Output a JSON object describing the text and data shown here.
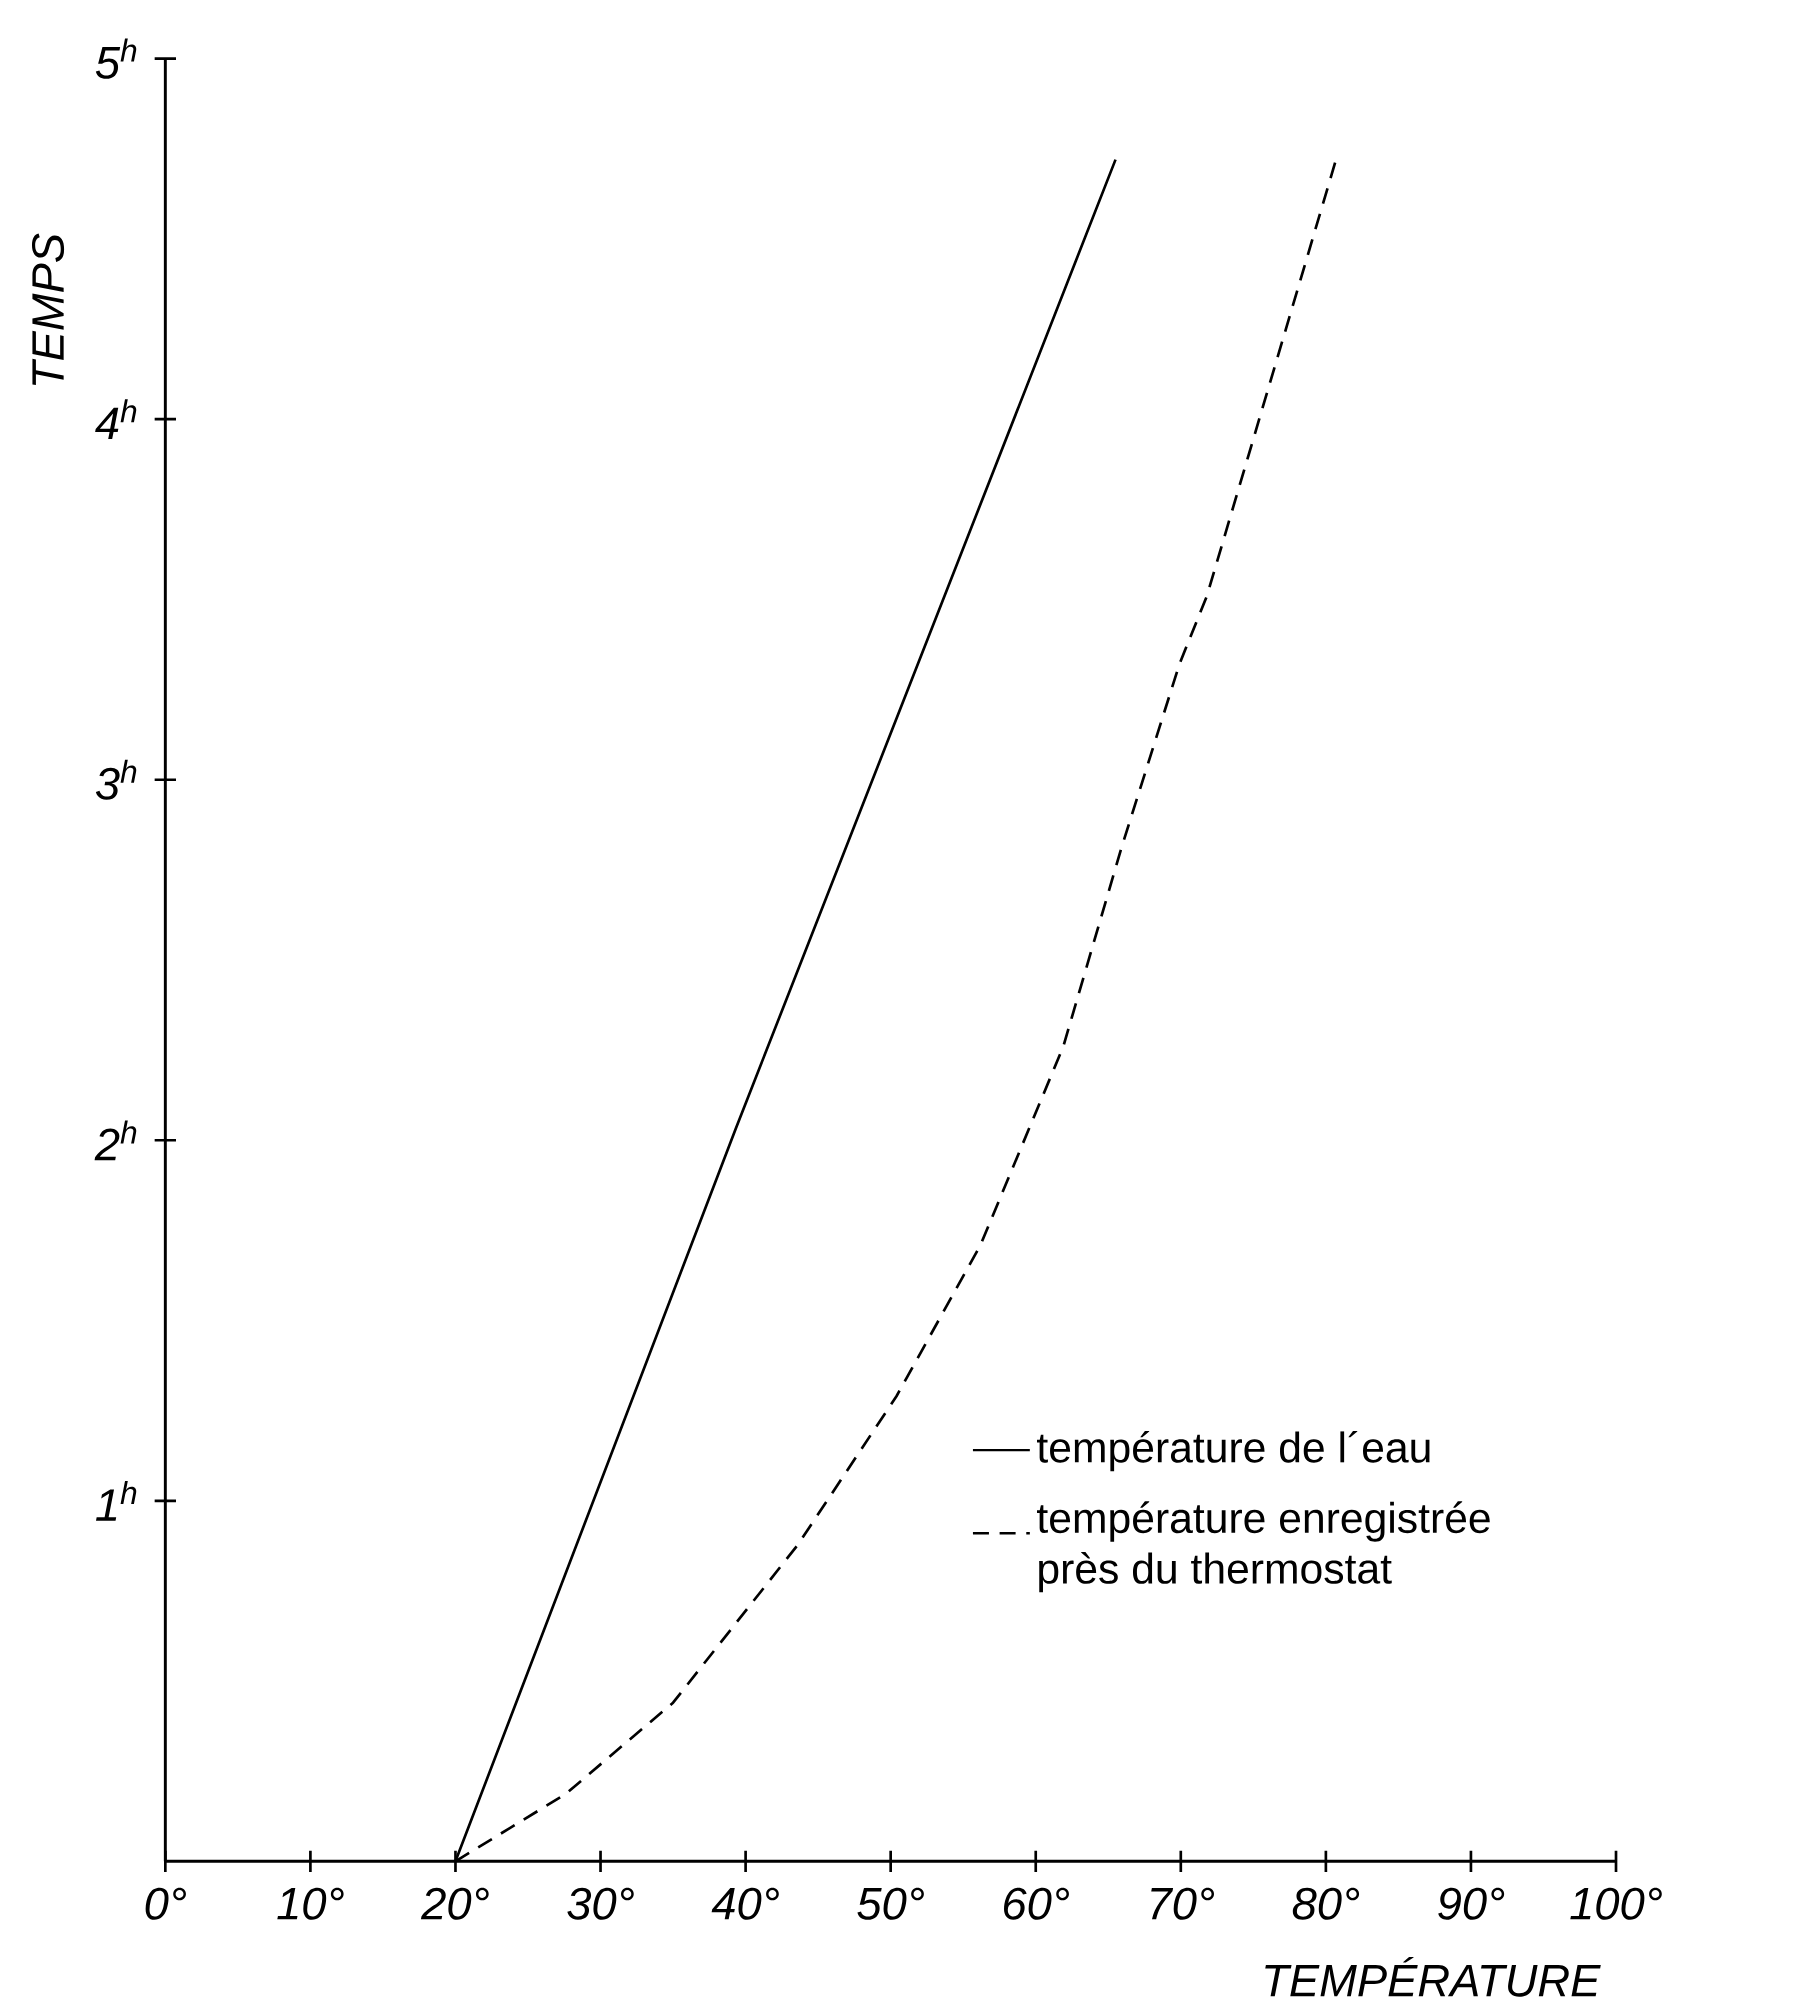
{
  "chart_data": {
    "type": "line",
    "xlabel": "TEMPÉRATURE",
    "ylabel": "TEMPS",
    "xlim": [
      0,
      100
    ],
    "ylim": [
      0,
      5
    ],
    "xticks": [
      {
        "value": 0,
        "label": "0°"
      },
      {
        "value": 10,
        "label": "10°"
      },
      {
        "value": 20,
        "label": "20°"
      },
      {
        "value": 30,
        "label": "30°"
      },
      {
        "value": 40,
        "label": "40°"
      },
      {
        "value": 50,
        "label": "50°"
      },
      {
        "value": 60,
        "label": "60°"
      },
      {
        "value": 70,
        "label": "70°"
      },
      {
        "value": 80,
        "label": "80°"
      },
      {
        "value": 90,
        "label": "90°"
      },
      {
        "value": 100,
        "label": "100°"
      }
    ],
    "yticks": [
      {
        "value": 1,
        "label": "1$^{h}$"
      },
      {
        "value": 2,
        "label": "2$^{h}$"
      },
      {
        "value": 3,
        "label": "3$^{h}$"
      },
      {
        "value": 4,
        "label": "4$^{h}$"
      },
      {
        "value": 5,
        "label": "5$^{h}$"
      }
    ],
    "grid": false,
    "legend": "bottom right",
    "series": [
      {
        "name": "température de l´eau",
        "color": "#000000",
        "line_style": "solid",
        "x": [
          20,
          39.3,
          65.5
        ],
        "values": [
          0,
          2.03,
          4.72
        ]
      },
      {
        "name": "température enregistrée près du thermostat",
        "color": "#000000",
        "line_style": "dashed",
        "x": [
          20,
          27.6,
          35.0,
          43.6,
          50.4,
          56.2,
          61.9,
          65.9,
          69.9,
          71.8,
          80.7
        ],
        "values": [
          0,
          0.187,
          0.44,
          0.878,
          1.29,
          1.71,
          2.26,
          2.81,
          3.32,
          3.51,
          4.72
        ]
      }
    ]
  }
}
